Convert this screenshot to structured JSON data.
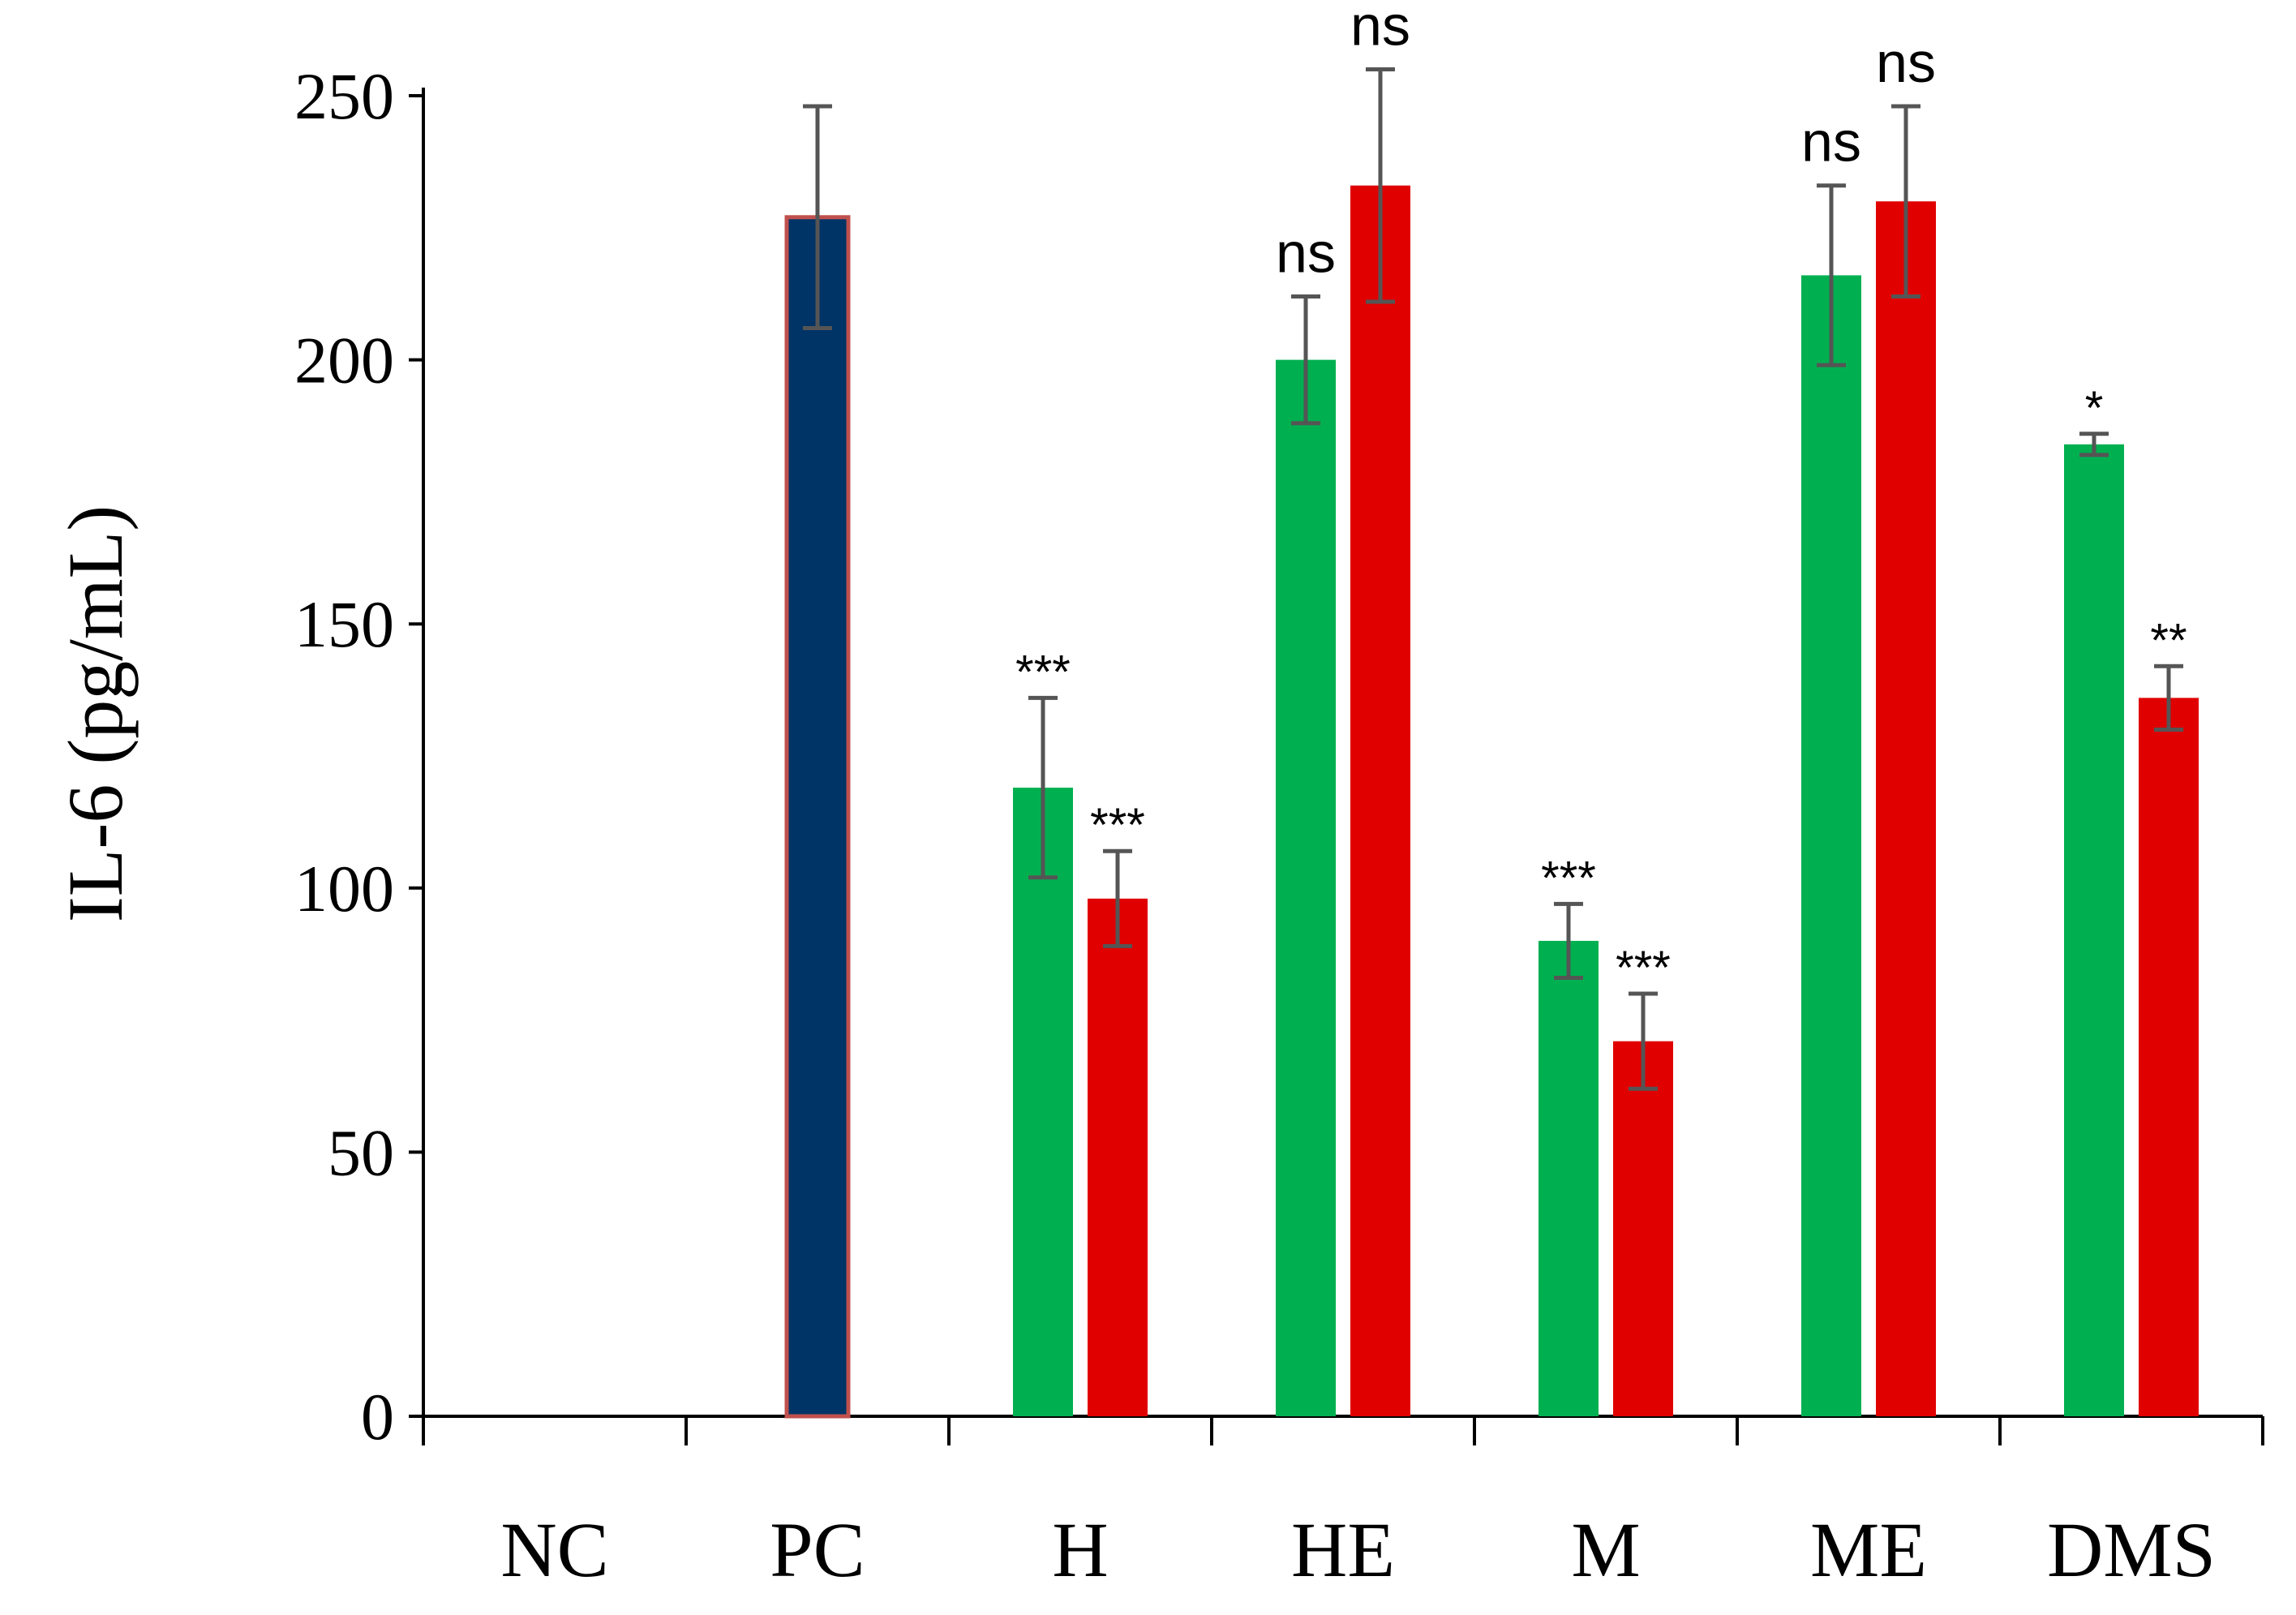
{
  "chart_data": {
    "type": "bar",
    "title": "",
    "xlabel": "",
    "ylabel": "IL-6 (pg/mL)",
    "ylim": [
      0,
      250
    ],
    "yticks": [
      "0",
      "50",
      "100",
      "150",
      "200",
      "250"
    ],
    "grid": false,
    "categories": [
      "NC",
      "PC",
      "H",
      "HE",
      "M",
      "ME",
      "DMS"
    ],
    "colors": {
      "pc": "#003366",
      "pc_border": "#c0504d",
      "green": "#00b050",
      "red": "#e00000",
      "error_bar": "#555555",
      "axis": "#000000"
    },
    "series": [
      {
        "color": "#003366",
        "values": [
          0,
          227,
          null,
          null,
          null,
          null,
          null
        ],
        "errors": [
          0,
          21,
          null,
          null,
          null,
          null,
          null
        ],
        "labels": [
          "",
          "",
          "",
          "",
          "",
          "",
          ""
        ]
      },
      {
        "color": "#00b050",
        "values": [
          null,
          null,
          119,
          200,
          90,
          216,
          184
        ],
        "errors": [
          null,
          null,
          17,
          12,
          7,
          17,
          2
        ],
        "labels": [
          "",
          "",
          "***",
          "ns",
          "***",
          "ns",
          "*"
        ]
      },
      {
        "color": "#e00000",
        "values": [
          null,
          null,
          98,
          233,
          71,
          230,
          136
        ],
        "errors": [
          null,
          null,
          9,
          22,
          9,
          18,
          6
        ],
        "labels": [
          "",
          "",
          "***",
          "ns",
          "***",
          "ns",
          "**"
        ]
      }
    ]
  }
}
